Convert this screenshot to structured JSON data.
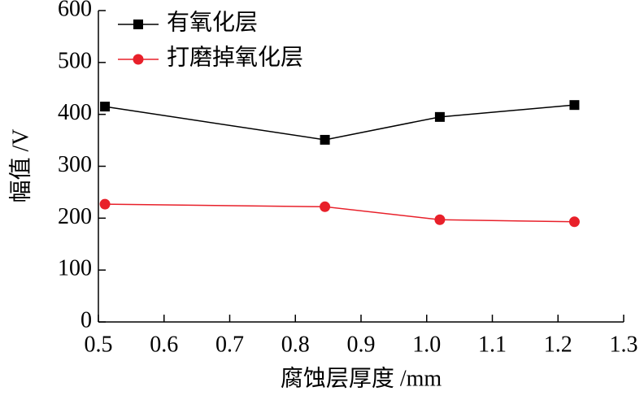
{
  "chart_data": {
    "type": "line",
    "x_label": "腐蚀层厚度 /mm",
    "y_label": "幅值 /V",
    "x": [
      0.51,
      0.845,
      1.02,
      1.225
    ],
    "series": [
      {
        "name": "有氧化层",
        "color": "#000000",
        "marker": "square",
        "values": [
          415,
          351,
          395,
          418
        ]
      },
      {
        "name": "打磨掉氧化层",
        "color": "#e8202a",
        "marker": "circle",
        "values": [
          227,
          222,
          197,
          193
        ]
      }
    ],
    "xlim": [
      0.5,
      1.3
    ],
    "xticks": [
      0.5,
      0.6,
      0.7,
      0.8,
      0.9,
      {
        "value": 1,
        "label": "1.0"
      },
      1.1,
      1.2,
      1.3
    ],
    "ylim": [
      0,
      600
    ],
    "yticks": [
      0,
      100,
      200,
      300,
      400,
      500,
      600
    ],
    "legend": "upper left"
  }
}
